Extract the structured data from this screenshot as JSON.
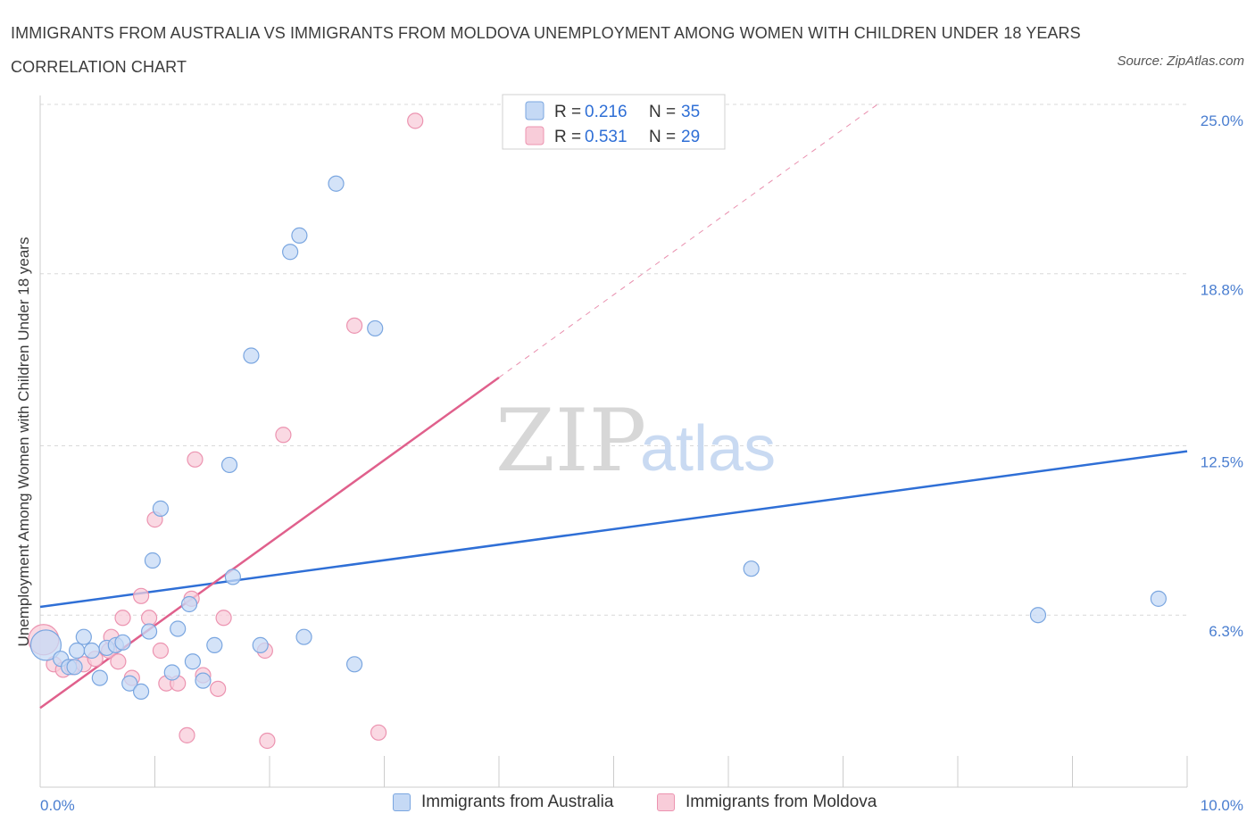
{
  "title": "IMMIGRANTS FROM AUSTRALIA VS IMMIGRANTS FROM MOLDOVA UNEMPLOYMENT AMONG WOMEN WITH CHILDREN UNDER 18 YEARS CORRELATION CHART",
  "source": "Source: ZipAtlas.com",
  "watermark": {
    "zip": "ZIP",
    "atlas": "atlas"
  },
  "legend_top": {
    "r_label": "R = ",
    "n_label": "N = ",
    "rows": [
      {
        "r": "0.216",
        "n": "35"
      },
      {
        "r": "0.531",
        "n": "29"
      }
    ]
  },
  "legend_bottom": {
    "series0": "Immigrants from Australia",
    "series1": "Immigrants from Moldova"
  },
  "colors": {
    "australia_fill": "#c5d9f5",
    "australia_stroke": "#7aa6e0",
    "australia_line": "#2f6fd6",
    "moldova_fill": "#f8ccd9",
    "moldova_stroke": "#ec93b0",
    "moldova_line": "#e0608c",
    "tick": "#4a7ed0",
    "grid": "#d9d9d9"
  },
  "chart_data": {
    "type": "scatter",
    "title": "IMMIGRANTS FROM AUSTRALIA VS IMMIGRANTS FROM MOLDOVA UNEMPLOYMENT AMONG WOMEN WITH CHILDREN UNDER 18 YEARS CORRELATION CHART",
    "xlabel": "",
    "ylabel": "Unemployment Among Women with Children Under 18 years",
    "xlim": [
      0,
      10
    ],
    "ylim": [
      0,
      25
    ],
    "x_tick_labels": [
      "0.0%",
      "10.0%"
    ],
    "y_ticks": [
      6.3,
      12.5,
      18.8,
      25.0
    ],
    "y_tick_labels": [
      "6.3%",
      "12.5%",
      "18.8%",
      "25.0%"
    ],
    "grid": true,
    "legend_position": "top-center",
    "series": [
      {
        "name": "Immigrants from Australia",
        "R": 0.216,
        "N": 35,
        "trend": {
          "x": [
            0,
            10
          ],
          "y": [
            6.6,
            12.3
          ]
        },
        "points": [
          [
            0.05,
            5.2,
            "big"
          ],
          [
            0.18,
            4.7
          ],
          [
            0.25,
            4.4
          ],
          [
            0.32,
            5.0
          ],
          [
            0.38,
            5.5
          ],
          [
            0.45,
            5.0
          ],
          [
            0.52,
            4.0
          ],
          [
            0.58,
            5.1
          ],
          [
            0.66,
            5.2
          ],
          [
            0.72,
            5.3
          ],
          [
            0.78,
            3.8
          ],
          [
            0.88,
            3.5
          ],
          [
            0.95,
            5.7
          ],
          [
            0.98,
            8.3
          ],
          [
            1.05,
            10.2
          ],
          [
            1.15,
            4.2
          ],
          [
            1.2,
            5.8
          ],
          [
            1.3,
            6.7
          ],
          [
            1.33,
            4.6
          ],
          [
            1.42,
            3.9
          ],
          [
            1.52,
            5.2
          ],
          [
            1.65,
            11.8
          ],
          [
            1.68,
            7.7
          ],
          [
            1.84,
            15.8
          ],
          [
            1.92,
            5.2
          ],
          [
            2.18,
            19.6
          ],
          [
            2.26,
            20.2
          ],
          [
            2.3,
            5.5
          ],
          [
            2.58,
            22.1
          ],
          [
            2.74,
            4.5
          ],
          [
            2.92,
            16.8
          ],
          [
            6.2,
            8.0
          ],
          [
            8.7,
            6.3
          ],
          [
            9.75,
            6.9
          ],
          [
            0.3,
            4.4
          ]
        ]
      },
      {
        "name": "Immigrants from Moldova",
        "R": 0.531,
        "N": 29,
        "trend": {
          "x": [
            0,
            4.0
          ],
          "y": [
            2.9,
            15.0
          ]
        },
        "trend_dashed": {
          "x": [
            4.0,
            7.3
          ],
          "y": [
            15.0,
            25.0
          ]
        },
        "points": [
          [
            0.03,
            5.4,
            "big"
          ],
          [
            0.12,
            4.5
          ],
          [
            0.2,
            4.3
          ],
          [
            0.28,
            4.4
          ],
          [
            0.38,
            4.5
          ],
          [
            0.48,
            4.7
          ],
          [
            0.6,
            5.0
          ],
          [
            0.62,
            5.5
          ],
          [
            0.68,
            4.6
          ],
          [
            0.72,
            6.2
          ],
          [
            0.8,
            4.0
          ],
          [
            0.88,
            7.0
          ],
          [
            0.95,
            6.2
          ],
          [
            1.05,
            5.0
          ],
          [
            1.0,
            9.8
          ],
          [
            1.1,
            3.8
          ],
          [
            1.2,
            3.8
          ],
          [
            1.28,
            1.9
          ],
          [
            1.32,
            6.9
          ],
          [
            1.35,
            12.0
          ],
          [
            1.42,
            4.1
          ],
          [
            1.55,
            3.6
          ],
          [
            1.6,
            6.2
          ],
          [
            1.96,
            5.0
          ],
          [
            1.98,
            1.7
          ],
          [
            2.12,
            12.9
          ],
          [
            2.74,
            16.9
          ],
          [
            2.95,
            2.0
          ],
          [
            3.27,
            24.4
          ]
        ]
      }
    ]
  }
}
